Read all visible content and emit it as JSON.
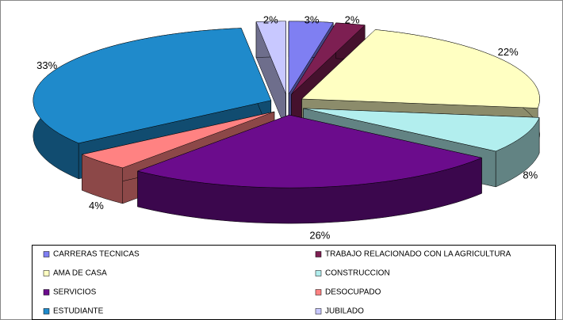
{
  "chart_data": {
    "type": "pie3d",
    "categories": [
      "CARRERAS TECNICAS",
      "TRABAJO RELACIONADO CON LA AGRICULTURA",
      "AMA DE CASA",
      "CONSTRUCCION",
      "SERVICIOS",
      "DESOCUPADO",
      "ESTUDIANTE",
      "JUBILADO"
    ],
    "values": [
      3,
      2,
      22,
      8,
      26,
      4,
      33,
      2
    ],
    "value_labels": [
      "3%",
      "2%",
      "22%",
      "8%",
      "26%",
      "4%",
      "33%",
      "2%"
    ],
    "colors": [
      "#7f7ff2",
      "#7d1f52",
      "#ffffc2",
      "#b2eeee",
      "#6b0c8c",
      "#ff8282",
      "#1f8acb",
      "#c8c8ff"
    ],
    "legend": "bottom"
  }
}
